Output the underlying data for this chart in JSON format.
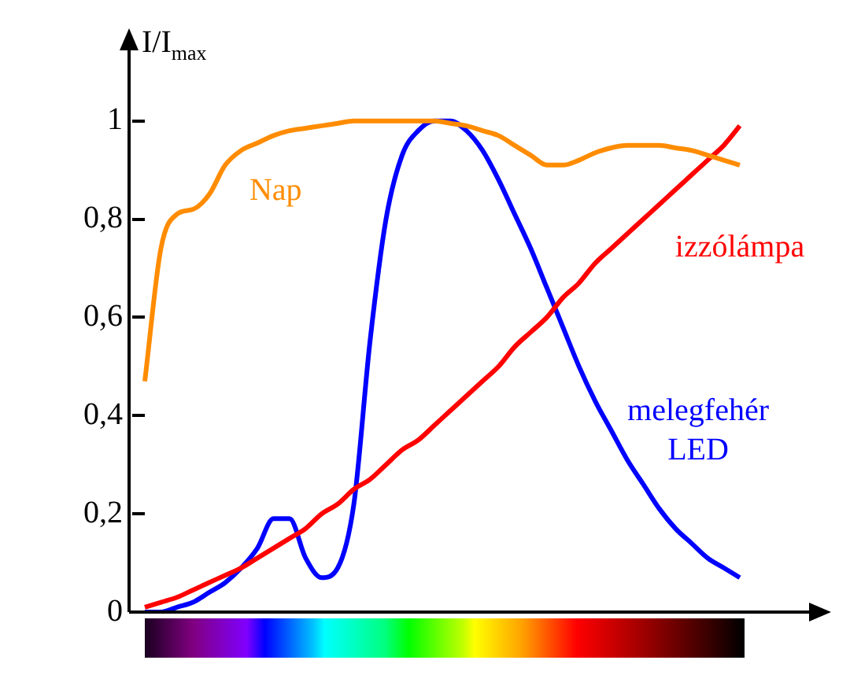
{
  "chart_data": {
    "type": "line",
    "ylabel": "I/I$_{max}$",
    "relative": false,
    "categories": [
      null,
      null,
      null,
      null,
      null,
      null,
      null,
      null,
      null,
      null,
      null,
      null,
      null,
      null,
      null,
      null,
      null,
      null,
      null,
      null,
      null,
      null,
      null,
      null,
      null,
      null,
      null,
      null,
      null,
      null,
      null,
      null,
      null,
      null,
      null,
      null,
      null,
      null
    ],
    "series": [
      {
        "name": "Nap",
        "color": "#ff8c00",
        "values": [
          0.47,
          0.74,
          0.81,
          0.82,
          0.85,
          0.91,
          0.94,
          0.955,
          0.97,
          0.98,
          0.985,
          0.99,
          0.995,
          1.0,
          1.0,
          1.0,
          1.0,
          1.0,
          1.0,
          0.995,
          0.99,
          0.98,
          0.97,
          0.95,
          0.93,
          0.91,
          0.91,
          0.92,
          0.935,
          0.945,
          0.95,
          0.95,
          0.95,
          0.945,
          0.94,
          0.93,
          0.92,
          0.91
        ]
      },
      {
        "name": "izzólámpa",
        "color": "#ff0000",
        "values": [
          0.01,
          0.02,
          0.03,
          0.045,
          0.06,
          0.075,
          0.09,
          0.11,
          0.13,
          0.15,
          0.17,
          0.2,
          0.22,
          0.25,
          0.27,
          0.3,
          0.33,
          0.35,
          0.38,
          0.41,
          0.44,
          0.47,
          0.5,
          0.54,
          0.57,
          0.6,
          0.64,
          0.67,
          0.71,
          0.74,
          0.77,
          0.8,
          0.83,
          0.86,
          0.89,
          0.92,
          0.95,
          0.99
        ]
      },
      {
        "name": "melegfehér LED",
        "color": "#0000ff",
        "values": [
          0.0,
          0.0,
          0.01,
          0.02,
          0.04,
          0.06,
          0.09,
          0.13,
          0.19,
          0.19,
          0.11,
          0.07,
          0.09,
          0.22,
          0.55,
          0.8,
          0.93,
          0.98,
          1.0,
          1.0,
          0.98,
          0.94,
          0.88,
          0.81,
          0.74,
          0.66,
          0.58,
          0.5,
          0.43,
          0.37,
          0.31,
          0.26,
          0.21,
          0.17,
          0.14,
          0.11,
          0.09,
          0.07
        ]
      }
    ],
    "ylim": [
      0,
      1.15
    ],
    "yticks": [
      0,
      {
        "value": 0.2,
        "label": "0,2"
      },
      {
        "value": 0.4,
        "label": "0,4"
      },
      {
        "value": 0.6,
        "label": "0,6"
      },
      {
        "value": 0.8,
        "label": "0,8"
      },
      1
    ],
    "tick_labels": "y",
    "grid": false,
    "legend": false,
    "marker": "none",
    "line_style": "solid"
  }
}
